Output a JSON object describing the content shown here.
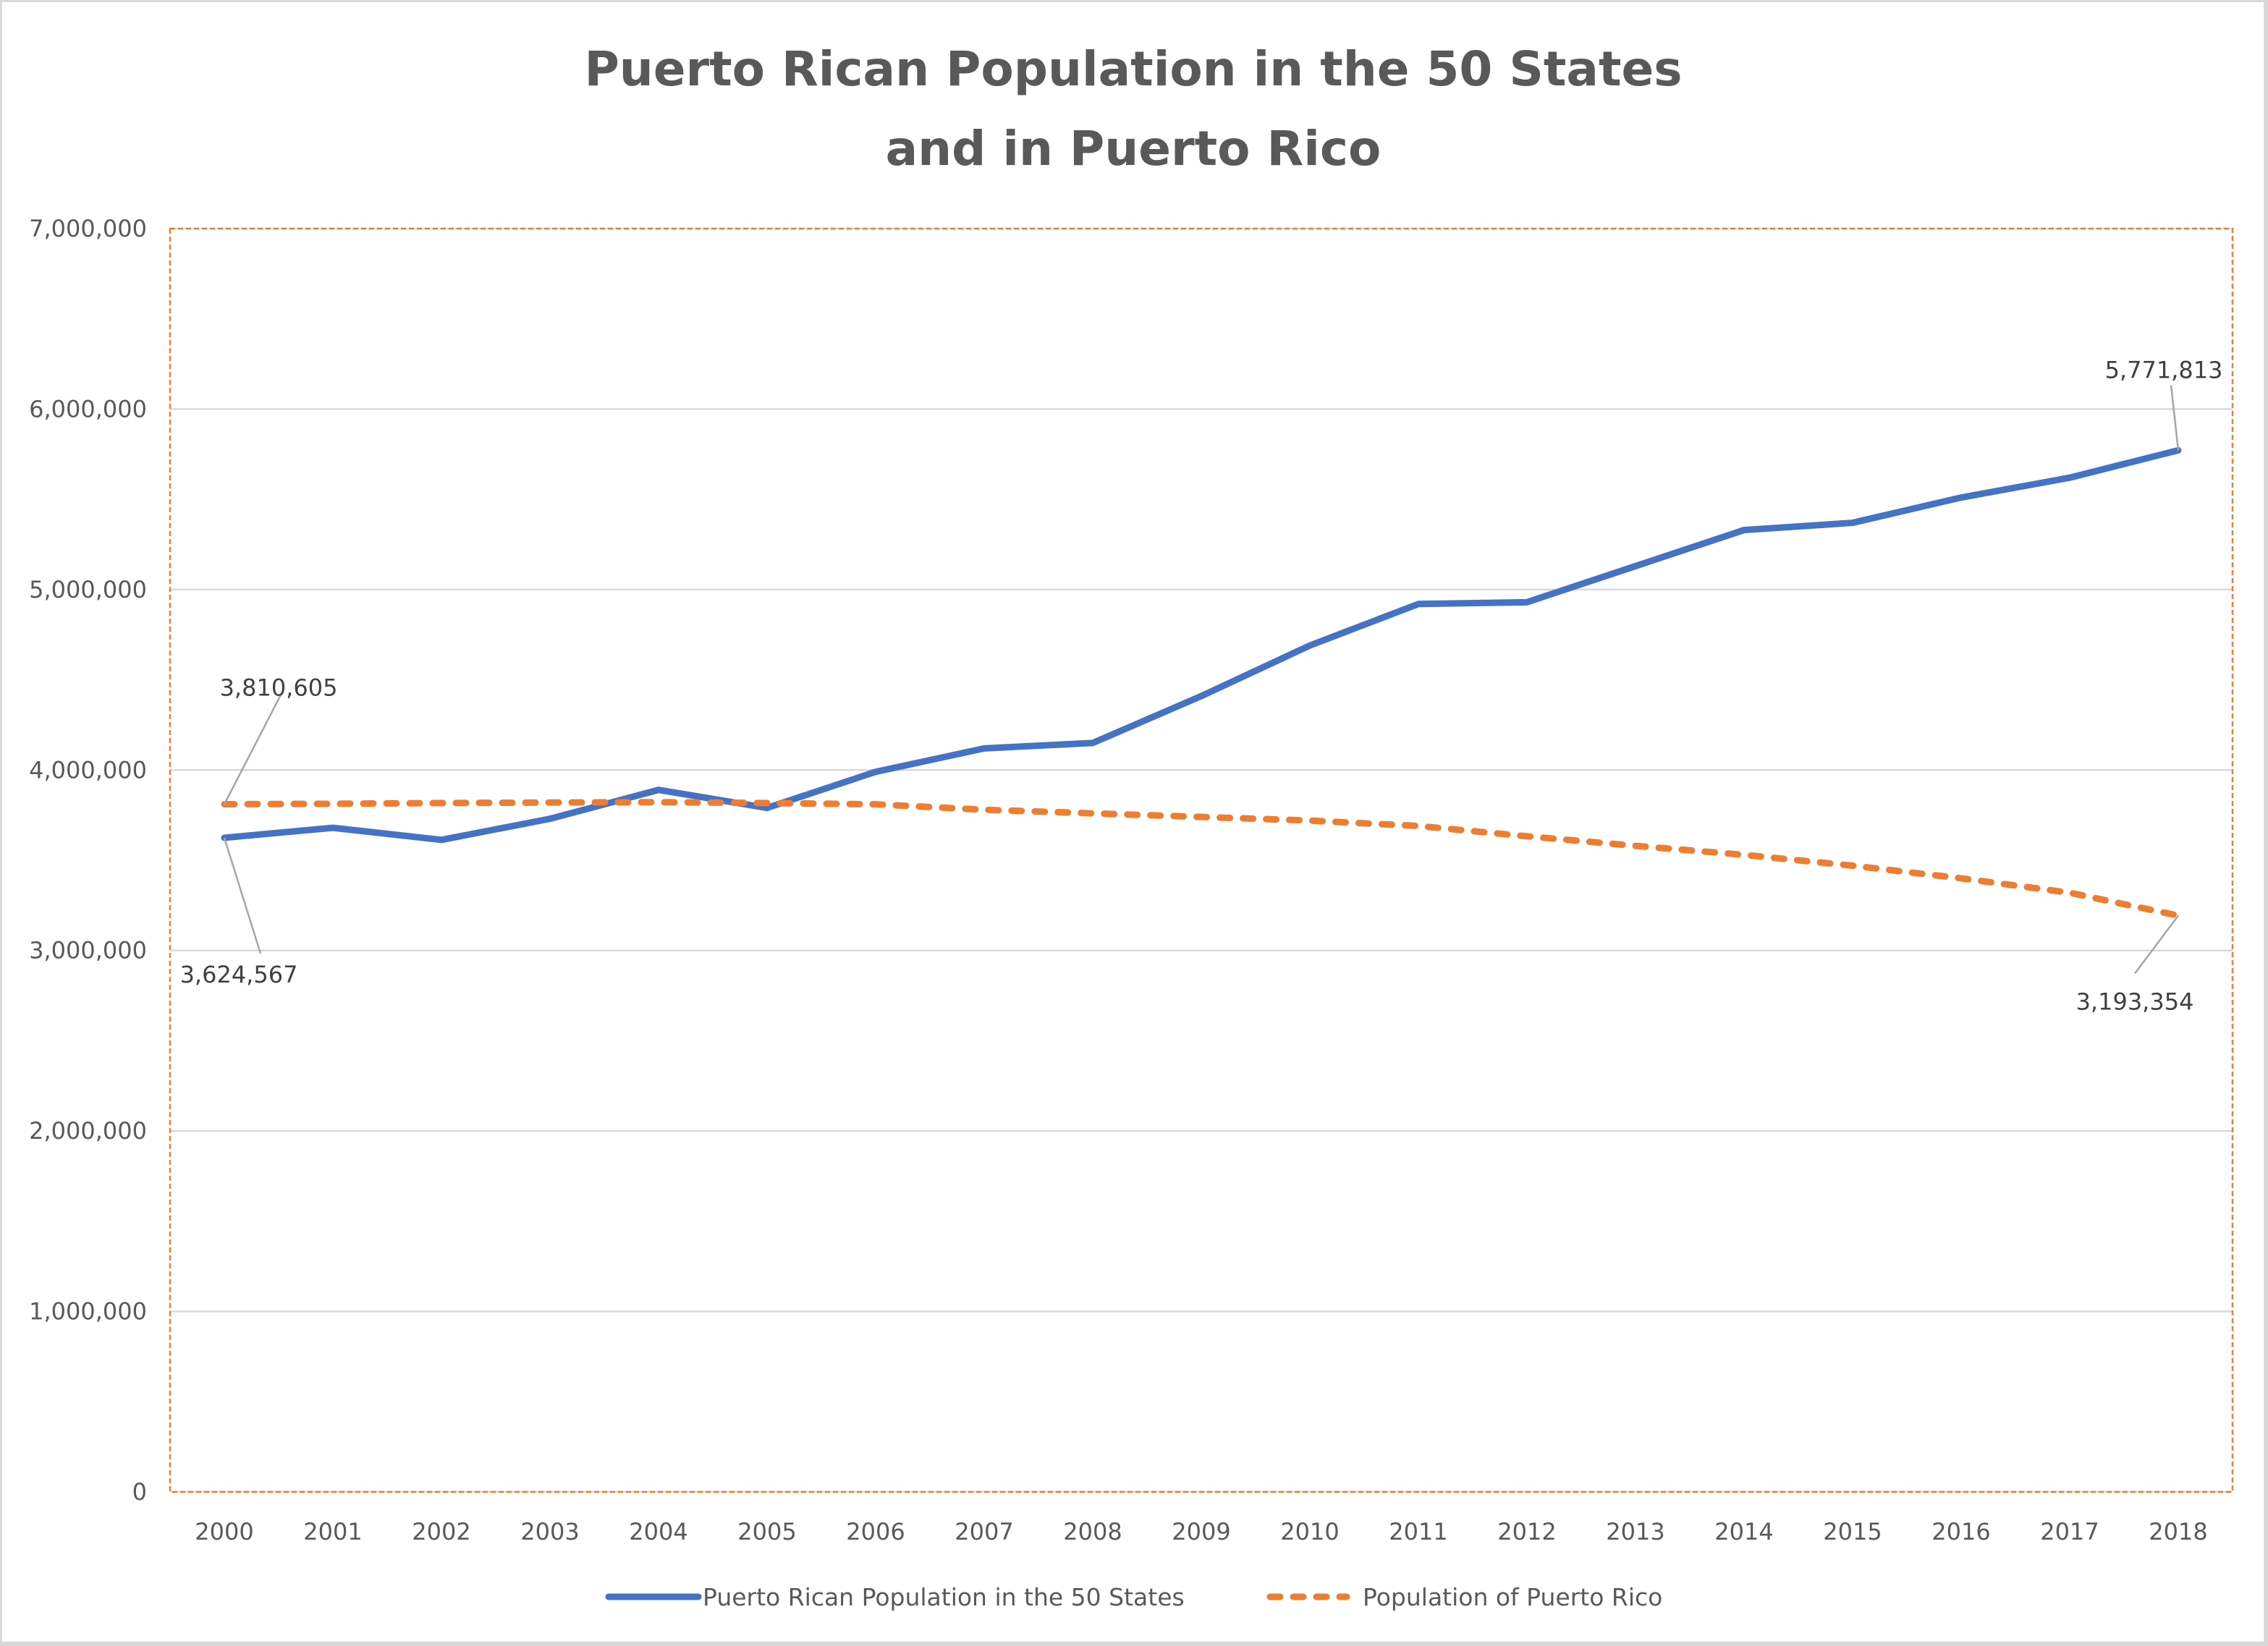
{
  "chart_data": {
    "type": "line",
    "title_lines": [
      "Puerto Rican Population in the 50 States",
      "and in Puerto Rico"
    ],
    "xlabel": "",
    "ylabel": "",
    "categories": [
      "2000",
      "2001",
      "2002",
      "2003",
      "2004",
      "2005",
      "2006",
      "2007",
      "2008",
      "2009",
      "2010",
      "2011",
      "2012",
      "2013",
      "2014",
      "2015",
      "2016",
      "2017",
      "2018"
    ],
    "ylim": [
      0,
      7000000
    ],
    "yticks": [
      0,
      1000000,
      2000000,
      3000000,
      4000000,
      5000000,
      6000000,
      7000000
    ],
    "ytick_labels": [
      "0",
      "1,000,000",
      "2,000,000",
      "3,000,000",
      "4,000,000",
      "5,000,000",
      "6,000,000",
      "7,000,000"
    ],
    "grid": true,
    "legend_position": "bottom",
    "series": [
      {
        "name": "Puerto Rican Population in the 50 States",
        "color": "#4472c4",
        "style": "solid",
        "values": [
          3624567,
          3680000,
          3613000,
          3730000,
          3890000,
          3790000,
          3990000,
          4120000,
          4150000,
          4410000,
          4690000,
          4920000,
          4930000,
          5130000,
          5330000,
          5370000,
          5510000,
          5620000,
          5771813
        ],
        "labels": [
          {
            "index": 0,
            "text": "3,624,567"
          },
          {
            "index": 18,
            "text": "5,771,813"
          }
        ]
      },
      {
        "name": "Population of Puerto Rico",
        "color": "#ed7d31",
        "style": "dashed",
        "values": [
          3810605,
          3813000,
          3817000,
          3820000,
          3822000,
          3817000,
          3810000,
          3780000,
          3760000,
          3740000,
          3720000,
          3690000,
          3633000,
          3580000,
          3530000,
          3470000,
          3400000,
          3320000,
          3193354
        ],
        "labels": [
          {
            "index": 0,
            "text": "3,810,605"
          },
          {
            "index": 18,
            "text": "3,193,354"
          }
        ]
      }
    ]
  },
  "colors": {
    "plot_border": "#ed7d31",
    "gridline": "#d9d9d9",
    "leader_line": "#a6a6a6"
  }
}
